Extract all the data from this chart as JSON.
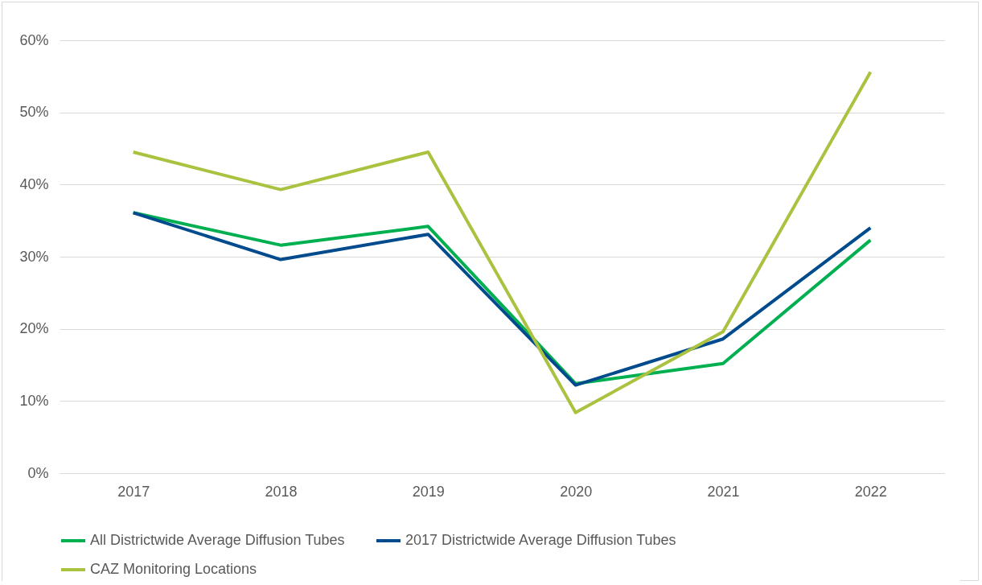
{
  "chart_data": {
    "type": "line",
    "categories": [
      "2017",
      "2018",
      "2019",
      "2020",
      "2021",
      "2022"
    ],
    "series": [
      {
        "name": "All Districtwide Average Diffusion Tubes",
        "color": "#00b050",
        "values": [
          36.1,
          31.6,
          34.2,
          12.4,
          15.2,
          32.3
        ]
      },
      {
        "name": "2017 Districtwide Average Diffusion Tubes",
        "color": "#004b8d",
        "values": [
          36.1,
          29.6,
          33.1,
          12.2,
          18.6,
          34.0
        ]
      },
      {
        "name": "CAZ Monitoring Locations",
        "color": "#a9c23f",
        "values": [
          44.5,
          39.3,
          44.5,
          8.4,
          19.6,
          55.6
        ]
      }
    ],
    "ylim": [
      0,
      60
    ],
    "yticks": [
      {
        "value": 0,
        "label": "0%"
      },
      {
        "value": 10,
        "label": "10%"
      },
      {
        "value": 20,
        "label": "20%"
      },
      {
        "value": 30,
        "label": "30%"
      },
      {
        "value": 40,
        "label": "40%"
      },
      {
        "value": 50,
        "label": "50%"
      },
      {
        "value": 60,
        "label": "60%"
      }
    ],
    "grid": "y",
    "legend": "bottom",
    "marker": "none",
    "line_style": "solid"
  }
}
